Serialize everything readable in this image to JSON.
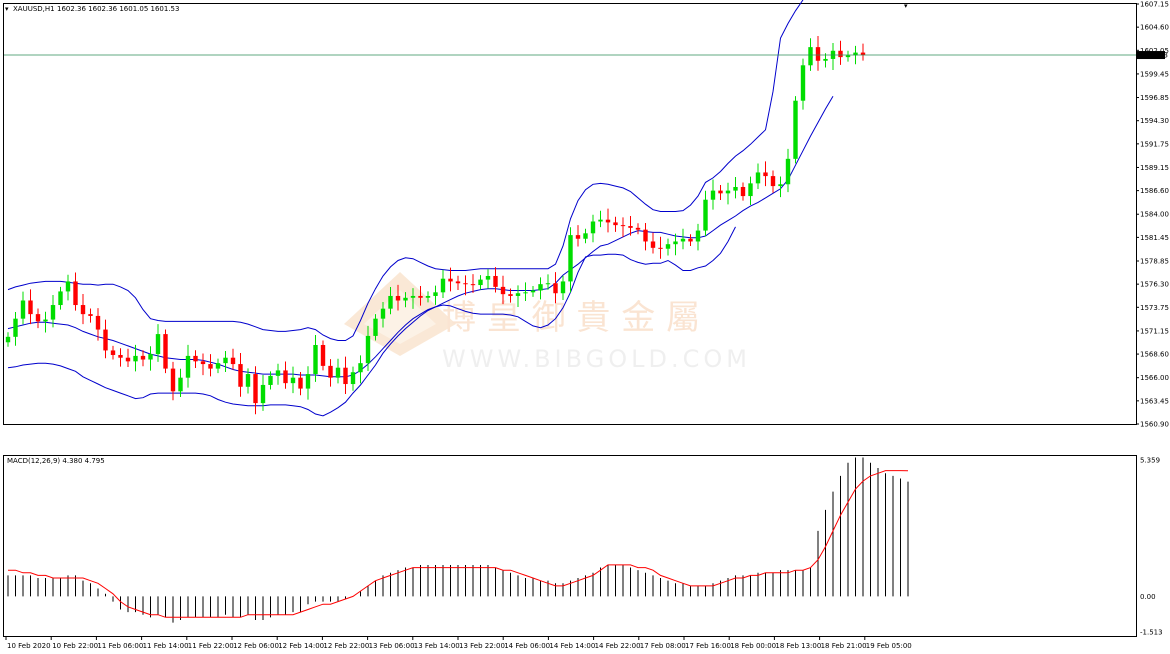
{
  "header": {
    "symbol_label": "XAUUSD,H1",
    "ohlc_label": "1602.36 1602.36 1601.05 1601.53"
  },
  "indicator": {
    "macd_label": "MACD(12,26,9) 4.380 4.795"
  },
  "watermark": {
    "cn": "博 皇 御 貴 金 屬",
    "en": "WWW.BIBGOLD.COM"
  },
  "colors": {
    "bull": "#00dd00",
    "bear": "#ff0000",
    "bands": "#0000cc",
    "signal": "#ff0000",
    "histogram": "#000000",
    "price_line": "#2e8b57"
  },
  "chart_data": [
    {
      "type": "candlestick",
      "title": "XAUUSD,H1",
      "current_price": "1601.53",
      "ylim": [
        1560.9,
        1607.15
      ],
      "y_ticks": [
        "1607.15",
        "1604.60",
        "1602.05",
        "1599.45",
        "1596.85",
        "1594.30",
        "1591.75",
        "1589.15",
        "1586.60",
        "1584.00",
        "1581.45",
        "1578.85",
        "1576.30",
        "1573.75",
        "1571.15",
        "1568.60",
        "1566.00",
        "1563.45",
        "1560.90"
      ],
      "x_ticks": [
        "10 Feb 2020",
        "10 Feb 22:00",
        "11 Feb 06:00",
        "11 Feb 14:00",
        "11 Feb 22:00",
        "12 Feb 06:00",
        "12 Feb 14:00",
        "12 Feb 22:00",
        "13 Feb 06:00",
        "13 Feb 14:00",
        "13 Feb 22:00",
        "14 Feb 06:00",
        "14 Feb 14:00",
        "14 Feb 22:00",
        "17 Feb 08:00",
        "17 Feb 16:00",
        "18 Feb 00:00",
        "18 Feb 13:00",
        "18 Feb 21:00",
        "19 Feb 05:00"
      ],
      "overlay": "Bollinger Bands",
      "close": [
        1570.5,
        1572.5,
        1574.5,
        1573.0,
        1572.2,
        1572.4,
        1574.0,
        1575.5,
        1576.6,
        1574.0,
        1573.0,
        1572.8,
        1571.3,
        1569.0,
        1568.5,
        1568.2,
        1567.8,
        1568.4,
        1568.0,
        1568.6,
        1570.8,
        1567.0,
        1564.5,
        1566.0,
        1568.4,
        1567.8,
        1567.5,
        1567.0,
        1567.6,
        1568.2,
        1567.5,
        1565.0,
        1566.4,
        1563.2,
        1565.2,
        1566.2,
        1566.8,
        1565.4,
        1566.0,
        1564.8,
        1566.4,
        1569.6,
        1567.3,
        1566.0,
        1567.1,
        1565.3,
        1566.6,
        1567.6,
        1570.6,
        1572.5,
        1573.6,
        1575.0,
        1574.5,
        1574.8,
        1575.0,
        1574.8,
        1575.0,
        1575.4,
        1576.9,
        1576.6,
        1576.4,
        1576.3,
        1576.2,
        1576.8,
        1577.2,
        1576.0,
        1575.2,
        1575.0,
        1575.3,
        1575.4,
        1575.6,
        1576.3,
        1576.4,
        1575.3,
        1576.6,
        1581.7,
        1581.3,
        1581.9,
        1583.2,
        1583.4,
        1583.1,
        1582.8,
        1582.7,
        1582.5,
        1582.3,
        1581.0,
        1580.3,
        1580.2,
        1580.7,
        1581.0,
        1581.3,
        1581.0,
        1582.2,
        1585.6,
        1586.6,
        1586.3,
        1586.6,
        1587.0,
        1586.0,
        1587.4,
        1588.6,
        1588.2,
        1587.1,
        1587.3,
        1590.1,
        1596.5,
        1600.4,
        1602.4,
        1600.9,
        1601.1,
        1602.0,
        1601.3,
        1601.5,
        1601.8,
        1601.53
      ],
      "upper_band": [
        1575.7,
        1576.0,
        1576.2,
        1576.4,
        1576.5,
        1576.6,
        1576.6,
        1576.6,
        1576.5,
        1576.4,
        1576.3,
        1576.3,
        1576.2,
        1576.3,
        1576.3,
        1576.0,
        1575.6,
        1574.8,
        1573.5,
        1572.5,
        1572.3,
        1572.2,
        1572.2,
        1572.2,
        1572.2,
        1572.2,
        1572.2,
        1572.2,
        1572.2,
        1572.2,
        1572.2,
        1572.1,
        1571.9,
        1571.6,
        1571.3,
        1571.2,
        1571.1,
        1571.1,
        1571.2,
        1571.3,
        1571.5,
        1571.3,
        1570.7,
        1570.3,
        1570.1,
        1570.1,
        1570.6,
        1572.3,
        1574.2,
        1575.8,
        1577.2,
        1578.2,
        1578.9,
        1579.2,
        1579.1,
        1578.7,
        1578.3,
        1578.0,
        1577.9,
        1577.8,
        1577.8,
        1577.8,
        1577.9,
        1578.0,
        1578.0,
        1578.0,
        1578.0,
        1578.0,
        1578.0,
        1578.0,
        1578.0,
        1578.0,
        1578.0,
        1578.5,
        1580.5,
        1583.5,
        1585.5,
        1586.7,
        1587.3,
        1587.4,
        1587.3,
        1587.1,
        1586.9,
        1586.5,
        1585.8,
        1585.1,
        1584.5,
        1584.3,
        1584.3,
        1584.3,
        1584.4,
        1585.0,
        1586.0,
        1587.5,
        1588.0,
        1588.7,
        1589.6,
        1590.4,
        1591.0,
        1591.7,
        1592.5,
        1593.3,
        1597.5,
        1603.4,
        1605.0,
        1606.4,
        1607.6
      ],
      "middle_band": [
        1571.4,
        1571.6,
        1571.8,
        1572.0,
        1572.1,
        1572.1,
        1572.0,
        1571.9,
        1571.8,
        1571.5,
        1571.1,
        1570.8,
        1570.5,
        1570.3,
        1570.1,
        1569.8,
        1569.5,
        1569.2,
        1568.9,
        1568.6,
        1568.4,
        1568.2,
        1568.1,
        1568.0,
        1568.0,
        1568.0,
        1567.9,
        1567.7,
        1567.5,
        1567.2,
        1566.9,
        1566.7,
        1566.6,
        1566.5,
        1566.4,
        1566.4,
        1566.4,
        1566.4,
        1566.4,
        1566.3,
        1566.3,
        1566.3,
        1566.2,
        1566.1,
        1566.1,
        1566.1,
        1566.3,
        1566.8,
        1567.5,
        1568.3,
        1569.2,
        1570.1,
        1571.0,
        1571.8,
        1572.5,
        1573.0,
        1573.5,
        1573.8,
        1574.2,
        1574.6,
        1575.0,
        1575.3,
        1575.5,
        1575.7,
        1575.8,
        1575.8,
        1575.7,
        1575.6,
        1575.6,
        1575.6,
        1575.6,
        1575.7,
        1575.8,
        1576.4,
        1577.3,
        1577.9,
        1578.5,
        1579.2,
        1579.9,
        1580.5,
        1580.7,
        1581.1,
        1581.5,
        1581.9,
        1582.2,
        1582.1,
        1582.0,
        1582.0,
        1581.8,
        1581.6,
        1581.5,
        1581.4,
        1581.4,
        1581.6,
        1582.2,
        1582.8,
        1583.3,
        1583.8,
        1584.4,
        1584.9,
        1585.3,
        1585.8,
        1586.3,
        1586.8,
        1587.8,
        1589.4,
        1591.0,
        1592.6,
        1594.1,
        1595.6,
        1597.0
      ],
      "lower_band": [
        1567.1,
        1567.2,
        1567.4,
        1567.5,
        1567.6,
        1567.6,
        1567.5,
        1567.3,
        1567.0,
        1566.7,
        1566.1,
        1565.7,
        1565.3,
        1564.9,
        1564.6,
        1564.3,
        1564.0,
        1563.7,
        1563.8,
        1564.2,
        1564.3,
        1564.3,
        1564.3,
        1564.3,
        1564.3,
        1564.3,
        1564.2,
        1564.0,
        1563.6,
        1563.3,
        1563.1,
        1563.0,
        1562.9,
        1562.9,
        1562.9,
        1563.0,
        1563.0,
        1563.0,
        1562.9,
        1562.8,
        1562.5,
        1562.0,
        1561.8,
        1562.2,
        1562.7,
        1563.3,
        1564.3,
        1565.2,
        1566.3,
        1567.4,
        1568.7,
        1569.7,
        1570.6,
        1571.4,
        1572.1,
        1572.8,
        1573.4,
        1573.8,
        1574.0,
        1573.9,
        1573.6,
        1573.3,
        1573.1,
        1573.0,
        1573.0,
        1573.0,
        1573.0,
        1572.9,
        1572.7,
        1572.2,
        1571.7,
        1571.5,
        1571.8,
        1572.5,
        1573.7,
        1575.4,
        1577.6,
        1579.3,
        1579.5,
        1579.5,
        1579.6,
        1579.6,
        1579.5,
        1579.0,
        1578.7,
        1578.5,
        1578.6,
        1578.6,
        1578.9,
        1578.4,
        1577.8,
        1577.8,
        1578.1,
        1578.3,
        1578.9,
        1579.7,
        1581.0,
        1582.6
      ]
    },
    {
      "type": "bar",
      "title": "MACD(12,26,9) 4.380 4.795",
      "ylim": [
        -1.513,
        5.359
      ],
      "y_ticks": [
        "5.359",
        "0.00",
        "-1.513"
      ],
      "macd_values": [
        0.8,
        0.8,
        0.8,
        0.8,
        0.7,
        0.7,
        0.7,
        0.7,
        0.8,
        0.8,
        0.6,
        0.5,
        0.3,
        0.1,
        -0.2,
        -0.5,
        -0.6,
        -0.6,
        -0.7,
        -0.8,
        -0.7,
        -0.8,
        -1.0,
        -0.9,
        -0.8,
        -0.8,
        -0.8,
        -0.8,
        -0.8,
        -0.7,
        -0.8,
        -0.8,
        -0.7,
        -0.9,
        -0.9,
        -0.8,
        -0.7,
        -0.7,
        -0.6,
        -0.6,
        -0.3,
        -0.2,
        -0.2,
        -0.2,
        -0.2,
        -0.1,
        0.0,
        0.2,
        0.4,
        0.6,
        0.8,
        0.9,
        1.0,
        1.1,
        1.1,
        1.2,
        1.2,
        1.2,
        1.2,
        1.2,
        1.2,
        1.2,
        1.2,
        1.2,
        1.2,
        1.1,
        1.0,
        0.9,
        0.8,
        0.7,
        0.7,
        0.6,
        0.6,
        0.5,
        0.5,
        0.6,
        0.7,
        0.8,
        0.9,
        1.1,
        1.2,
        1.2,
        1.2,
        1.1,
        1.0,
        0.9,
        0.8,
        0.7,
        0.6,
        0.5,
        0.5,
        0.4,
        0.4,
        0.4,
        0.5,
        0.6,
        0.7,
        0.8,
        0.8,
        0.8,
        0.9,
        0.9,
        0.9,
        1.0,
        1.0,
        1.0,
        1.0,
        1.1,
        2.5,
        3.3,
        4.0,
        4.6,
        5.1,
        5.3,
        5.3,
        5.1,
        4.9,
        4.7,
        4.6,
        4.5,
        4.38
      ],
      "signal_values": [
        1.0,
        1.0,
        0.9,
        0.9,
        0.8,
        0.8,
        0.7,
        0.7,
        0.7,
        0.7,
        0.7,
        0.6,
        0.5,
        0.3,
        0.1,
        -0.2,
        -0.4,
        -0.5,
        -0.6,
        -0.7,
        -0.7,
        -0.8,
        -0.8,
        -0.8,
        -0.8,
        -0.8,
        -0.8,
        -0.8,
        -0.8,
        -0.8,
        -0.8,
        -0.8,
        -0.7,
        -0.7,
        -0.7,
        -0.7,
        -0.7,
        -0.7,
        -0.7,
        -0.6,
        -0.5,
        -0.4,
        -0.3,
        -0.3,
        -0.2,
        -0.1,
        0.0,
        0.2,
        0.4,
        0.6,
        0.7,
        0.8,
        0.9,
        1.0,
        1.1,
        1.1,
        1.1,
        1.1,
        1.1,
        1.1,
        1.1,
        1.1,
        1.1,
        1.1,
        1.1,
        1.1,
        1.0,
        1.0,
        0.9,
        0.8,
        0.7,
        0.6,
        0.5,
        0.4,
        0.4,
        0.5,
        0.6,
        0.7,
        0.8,
        1.0,
        1.2,
        1.2,
        1.2,
        1.2,
        1.1,
        1.1,
        1.0,
        0.8,
        0.7,
        0.6,
        0.5,
        0.4,
        0.4,
        0.4,
        0.4,
        0.5,
        0.6,
        0.7,
        0.7,
        0.8,
        0.8,
        0.9,
        0.9,
        0.9,
        0.9,
        1.0,
        1.0,
        1.1,
        1.4,
        1.9,
        2.5,
        3.1,
        3.6,
        4.1,
        4.4,
        4.6,
        4.7,
        4.8,
        4.8,
        4.8,
        4.795
      ]
    }
  ]
}
